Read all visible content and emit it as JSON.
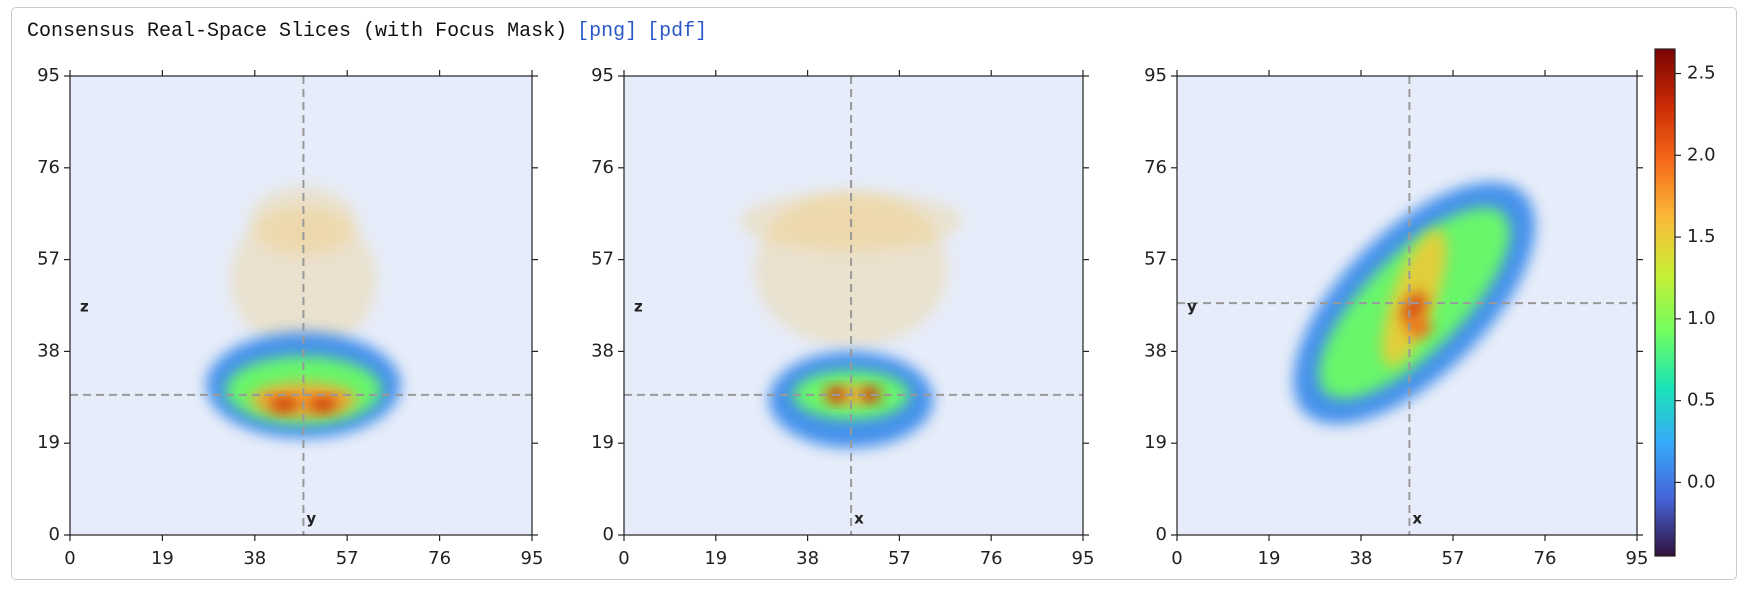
{
  "header": {
    "title": "Consensus Real-Space Slices (with Focus Mask)",
    "links": [
      "[png]",
      "[pdf]"
    ]
  },
  "chart_data": [
    {
      "type": "heatmap",
      "xlim": [
        0,
        95
      ],
      "ylim": [
        0,
        95
      ],
      "xticks": [
        0,
        19,
        38,
        57,
        76,
        95
      ],
      "yticks": [
        0,
        19,
        38,
        57,
        76,
        95
      ],
      "background": "#e6ecf9",
      "vertical_label": "y",
      "horizontal_label": "z",
      "crosshair": {
        "x": 48,
        "y": 29
      },
      "masked_blobs": [
        {
          "x": 48,
          "y": 53,
          "w": 30,
          "h": 30,
          "angle": 0,
          "value": 1.6
        },
        {
          "x": 48,
          "y": 65,
          "w": 22,
          "h": 14,
          "angle": 0,
          "value": 1.6
        }
      ],
      "blobs": [
        {
          "x": 48,
          "y": 31,
          "w": 40,
          "h": 22,
          "angle": 0,
          "value": 0.1
        },
        {
          "x": 48,
          "y": 30,
          "w": 32,
          "h": 14,
          "angle": 0,
          "value": 0.9
        },
        {
          "x": 48,
          "y": 28,
          "w": 22,
          "h": 7,
          "angle": 0,
          "value": 1.7
        },
        {
          "x": 44,
          "y": 27,
          "w": 6,
          "h": 3,
          "angle": 0,
          "value": 2.3
        },
        {
          "x": 52,
          "y": 27,
          "w": 6,
          "h": 3,
          "angle": 0,
          "value": 2.3
        }
      ]
    },
    {
      "type": "heatmap",
      "xlim": [
        0,
        95
      ],
      "ylim": [
        0,
        95
      ],
      "xticks": [
        0,
        19,
        38,
        57,
        76,
        95
      ],
      "yticks": [
        0,
        19,
        38,
        57,
        76,
        95
      ],
      "background": "#e6ecf9",
      "vertical_label": "x",
      "horizontal_label": "z",
      "crosshair": {
        "x": 47,
        "y": 29
      },
      "masked_blobs": [
        {
          "x": 47,
          "y": 55,
          "w": 40,
          "h": 32,
          "angle": 0,
          "value": 1.6
        },
        {
          "x": 47,
          "y": 65,
          "w": 46,
          "h": 12,
          "angle": 0,
          "value": 1.6
        }
      ],
      "blobs": [
        {
          "x": 47,
          "y": 28,
          "w": 34,
          "h": 20,
          "angle": 0,
          "value": 0.1
        },
        {
          "x": 47,
          "y": 29,
          "w": 24,
          "h": 10,
          "angle": 0,
          "value": 0.9
        },
        {
          "x": 47,
          "y": 29,
          "w": 12,
          "h": 4,
          "angle": 0,
          "value": 1.6
        },
        {
          "x": 44,
          "y": 29,
          "w": 4,
          "h": 3,
          "angle": 0,
          "value": 2.4
        },
        {
          "x": 51,
          "y": 29,
          "w": 4,
          "h": 3,
          "angle": 0,
          "value": 2.4
        }
      ]
    },
    {
      "type": "heatmap",
      "xlim": [
        0,
        95
      ],
      "ylim": [
        0,
        95
      ],
      "xticks": [
        0,
        19,
        38,
        57,
        76,
        95
      ],
      "yticks": [
        0,
        19,
        38,
        57,
        76,
        95
      ],
      "background": "#e6ecf9",
      "vertical_label": "x",
      "horizontal_label": "y",
      "crosshair": {
        "x": 48,
        "y": 48
      },
      "masked_blobs": [],
      "blobs": [
        {
          "x": 49,
          "y": 48,
          "w": 64,
          "h": 30,
          "angle": -45,
          "value": 0.1
        },
        {
          "x": 49,
          "y": 48,
          "w": 52,
          "h": 20,
          "angle": -45,
          "value": 0.9
        },
        {
          "x": 49,
          "y": 49,
          "w": 30,
          "h": 9,
          "angle": -70,
          "value": 1.5
        },
        {
          "x": 49,
          "y": 47,
          "w": 7,
          "h": 4,
          "angle": -60,
          "value": 2.2
        },
        {
          "x": 50,
          "y": 43,
          "w": 5,
          "h": 4,
          "angle": 0,
          "value": 2.0
        }
      ]
    },
    {
      "type": "colorbar",
      "ylim": [
        -0.45,
        2.65
      ],
      "yticks": [
        0.0,
        0.5,
        1.0,
        1.5,
        2.0,
        2.5
      ],
      "colormap": [
        "#30123b",
        "#4662d7",
        "#36aaf9",
        "#1ae4b6",
        "#72fe5e",
        "#c8ef34",
        "#faba39",
        "#f66b19",
        "#ca2a04",
        "#7a0403"
      ]
    }
  ]
}
